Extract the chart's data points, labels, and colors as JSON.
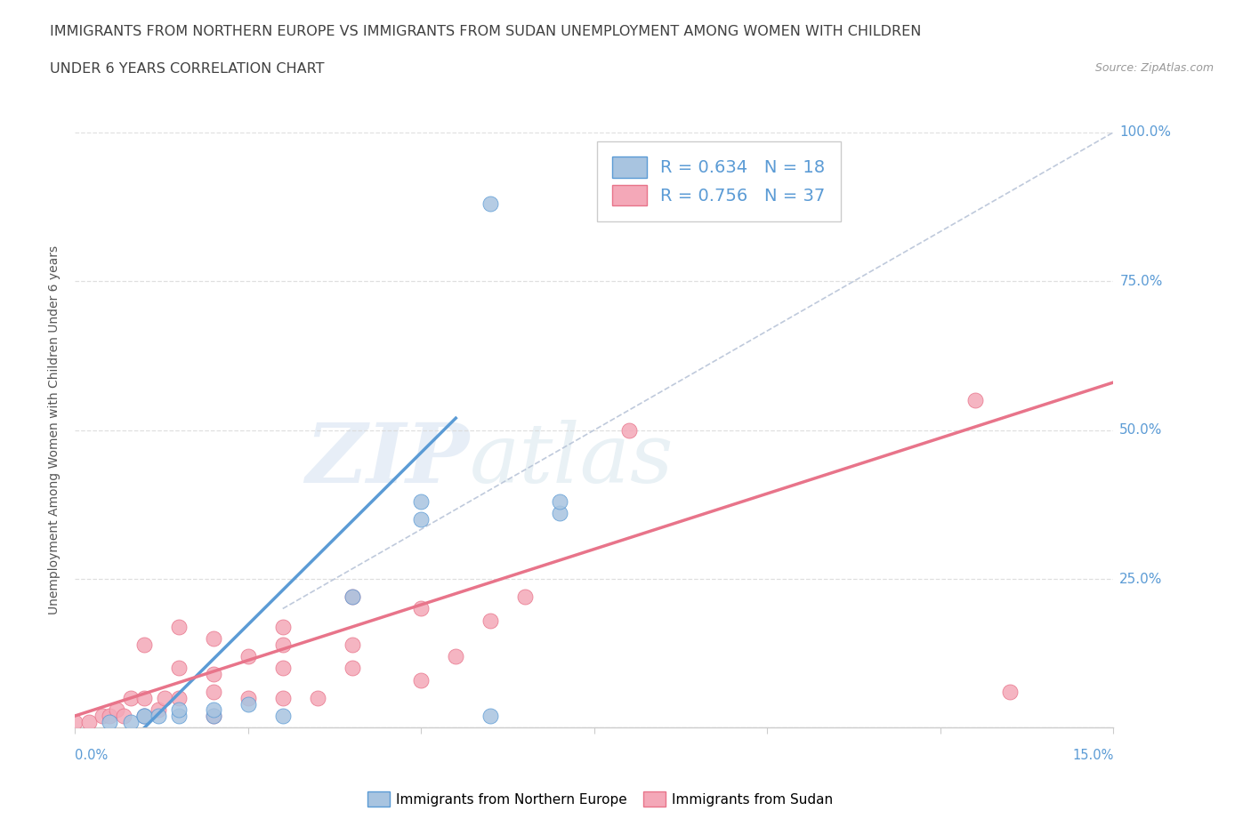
{
  "title_line1": "IMMIGRANTS FROM NORTHERN EUROPE VS IMMIGRANTS FROM SUDAN UNEMPLOYMENT AMONG WOMEN WITH CHILDREN",
  "title_line2": "UNDER 6 YEARS CORRELATION CHART",
  "source": "Source: ZipAtlas.com",
  "xlabel_bottom_left": "0.0%",
  "xlabel_bottom_right": "15.0%",
  "ylabel": "Unemployment Among Women with Children Under 6 years",
  "legend_bottom_label1": "Immigrants from Northern Europe",
  "legend_bottom_label2": "Immigrants from Sudan",
  "R1": 0.634,
  "N1": 18,
  "R2": 0.756,
  "N2": 37,
  "xlim": [
    0.0,
    0.15
  ],
  "ylim": [
    0.0,
    1.0
  ],
  "yticks": [
    0.0,
    0.25,
    0.5,
    0.75,
    1.0
  ],
  "ytick_labels": [
    "",
    "25.0%",
    "50.0%",
    "75.0%",
    "100.0%"
  ],
  "color_blue": "#a8c4e0",
  "color_pink": "#f4a8b8",
  "color_blue_dark": "#5b9bd5",
  "color_pink_dark": "#e8748a",
  "watermark_zip": "ZIP",
  "watermark_atlas": "atlas",
  "blue_scatter_x": [
    0.005,
    0.008,
    0.01,
    0.01,
    0.012,
    0.015,
    0.015,
    0.02,
    0.02,
    0.025,
    0.03,
    0.04,
    0.05,
    0.05,
    0.06,
    0.07,
    0.07,
    0.06
  ],
  "blue_scatter_y": [
    0.01,
    0.01,
    0.02,
    0.02,
    0.02,
    0.02,
    0.03,
    0.02,
    0.03,
    0.04,
    0.02,
    0.22,
    0.35,
    0.38,
    0.88,
    0.36,
    0.38,
    0.02
  ],
  "pink_scatter_x": [
    0.0,
    0.002,
    0.004,
    0.005,
    0.006,
    0.007,
    0.008,
    0.01,
    0.01,
    0.01,
    0.012,
    0.013,
    0.015,
    0.015,
    0.015,
    0.02,
    0.02,
    0.02,
    0.02,
    0.025,
    0.025,
    0.03,
    0.03,
    0.03,
    0.03,
    0.035,
    0.04,
    0.04,
    0.04,
    0.05,
    0.05,
    0.055,
    0.06,
    0.065,
    0.08,
    0.13,
    0.135
  ],
  "pink_scatter_y": [
    0.01,
    0.01,
    0.02,
    0.02,
    0.03,
    0.02,
    0.05,
    0.02,
    0.05,
    0.14,
    0.03,
    0.05,
    0.05,
    0.1,
    0.17,
    0.02,
    0.06,
    0.09,
    0.15,
    0.05,
    0.12,
    0.05,
    0.1,
    0.14,
    0.17,
    0.05,
    0.1,
    0.14,
    0.22,
    0.08,
    0.2,
    0.12,
    0.18,
    0.22,
    0.5,
    0.55,
    0.06
  ],
  "blue_trend_x": [
    0.01,
    0.055
  ],
  "blue_trend_y": [
    0.0,
    0.52
  ],
  "pink_trend_x": [
    0.0,
    0.15
  ],
  "pink_trend_y": [
    0.02,
    0.58
  ],
  "ref_line_x": [
    0.03,
    0.15
  ],
  "ref_line_y": [
    0.2,
    1.0
  ],
  "background_color": "#ffffff",
  "grid_color": "#d8d8d8",
  "title_color": "#404040",
  "axis_label_color": "#5b9bd5"
}
